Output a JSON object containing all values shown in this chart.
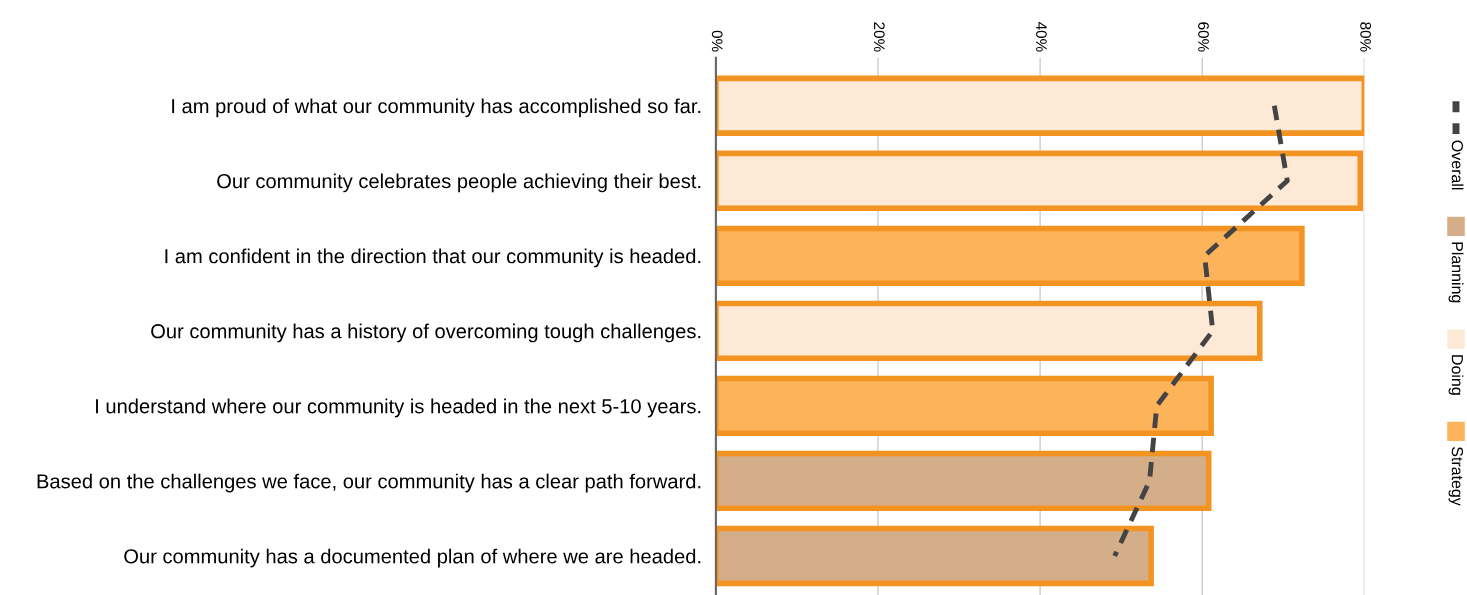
{
  "chart_data": {
    "type": "bar",
    "orientation": "horizontal",
    "categories": [
      "I am proud of what our community has accomplished so far.",
      "Our community celebrates people achieving their best.",
      "I am confident in the direction that our community is headed.",
      "Our community has a history of overcoming tough challenges.",
      "I understand where our community is headed in the next 5-10 years.",
      "Based on the challenges we face, our community has a clear path forward.",
      "Our community has a documented plan of where we are headed."
    ],
    "series": [
      {
        "name": "Overall",
        "type": "line",
        "color": "#444444",
        "line_style": "dashed",
        "values": [
          68.9,
          70.5,
          60.3,
          61.3,
          54.4,
          53.5,
          49.2
        ]
      },
      {
        "name": "Planning",
        "color": "#d4ae89",
        "values": [
          null,
          null,
          null,
          null,
          null,
          60.8,
          53.7
        ]
      },
      {
        "name": "Doing",
        "color": "#fde9d6",
        "values": [
          80,
          79.5,
          null,
          67.1,
          null,
          null,
          null
        ]
      },
      {
        "name": "Strategy",
        "color": "#fdb35a",
        "values": [
          null,
          null,
          72.3,
          null,
          61.1,
          null,
          null
        ]
      }
    ],
    "xlim": [
      0,
      80
    ],
    "xticks": [
      {
        "value": 0,
        "label": "0%"
      },
      {
        "value": 20,
        "label": "20%"
      },
      {
        "value": 40,
        "label": "40%"
      },
      {
        "value": 60,
        "label": "60%"
      },
      {
        "value": 80,
        "label": "80%"
      }
    ],
    "grid": "x",
    "legend": "right"
  }
}
